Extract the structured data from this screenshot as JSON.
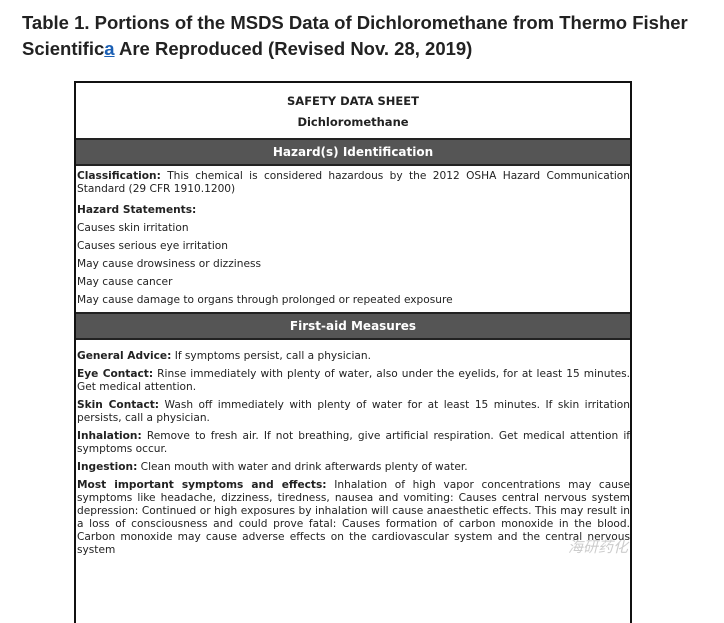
{
  "title": {
    "before": "Table 1. Portions of the MSDS Data of Dichloromethane from Thermo Fisher Scientific",
    "link": "a",
    "after": " Are Reproduced (Revised Nov. 28, 2019)"
  },
  "sheet": {
    "heading": "SAFETY DATA SHEET",
    "substance": "Dichloromethane",
    "sections": [
      {
        "title": "Hazard(s) Identification",
        "classification_label": "Classification:",
        "classification_text": " This chemical is considered hazardous by the 2012 OSHA Hazard Communication Standard (29 CFR 1910.1200)",
        "statements_label": "Hazard Statements:",
        "statements": [
          "Causes skin irritation",
          "Causes serious eye irritation",
          "May cause drowsiness or dizziness",
          "May cause cancer",
          "May cause damage to organs through prolonged or repeated exposure"
        ]
      },
      {
        "title": "First-aid Measures",
        "items": [
          {
            "label": "General Advice:",
            "text": " If symptoms persist, call a physician."
          },
          {
            "label": "Eye Contact:",
            "text": " Rinse immediately with plenty of water, also under the eyelids, for at least 15 minutes. Get medical attention."
          },
          {
            "label": "Skin Contact:",
            "text": " Wash off immediately with plenty of water for at least 15 minutes. If skin irritation persists, call a physician."
          },
          {
            "label": "Inhalation:",
            "text": " Remove to fresh air. If not breathing, give artificial respiration. Get medical attention if symptoms occur."
          },
          {
            "label": "Ingestion:",
            "text": " Clean mouth with water and drink afterwards plenty of water."
          },
          {
            "label": "Most important symptoms and effects:",
            "text": " Inhalation of high vapor concentrations may cause symptoms like headache, dizziness, tiredness, nausea and vomiting: Causes central nervous system depression: Continued or high exposures by inhalation will cause anaesthetic effects. This may result in a loss of consciousness and could prove fatal: Causes formation of carbon monoxide in the blood. Carbon monoxide may cause adverse effects on the cardiovascular system and the central nervous system"
          }
        ]
      }
    ]
  },
  "watermark": "海研药化"
}
